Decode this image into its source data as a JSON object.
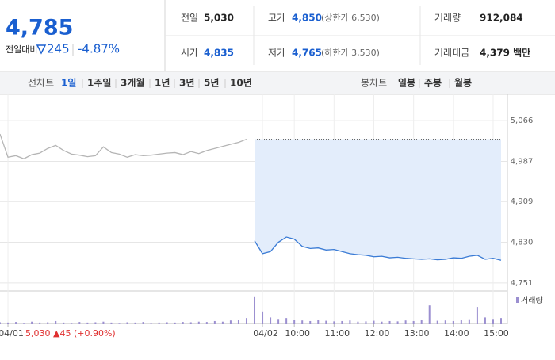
{
  "quote": {
    "price": "4,785",
    "change_label": "전일대비",
    "change": "245",
    "change_pct": "-4.87%"
  },
  "stats": [
    {
      "label": "전일",
      "value": "5,030",
      "color": "#222222"
    },
    {
      "label": "고가",
      "value": "4,850",
      "extra": "(상한가 6,530)",
      "color": "#1a5fd0"
    },
    {
      "label": "거래량",
      "value": "912,084",
      "color": "#222222"
    },
    {
      "label": "시가",
      "value": "4,835",
      "color": "#1a5fd0"
    },
    {
      "label": "저가",
      "value": "4,765",
      "extra": "(하한가 3,530)",
      "color": "#1a5fd0"
    },
    {
      "label": "거래대금",
      "value": "4,379 백만",
      "color": "#222222"
    }
  ],
  "tabs": {
    "line_label": "선차트",
    "line_periods": [
      "1일",
      "1주일",
      "3개월",
      "1년",
      "3년",
      "5년",
      "10년"
    ],
    "selected": 0,
    "candle_label": "봉차트",
    "candle_periods": [
      "일봉",
      "주봉",
      "월봉"
    ]
  },
  "chart_data": [
    {
      "type": "line",
      "categories": [
        null,
        "04/01",
        null,
        null,
        null,
        null,
        null,
        null,
        null,
        null,
        null,
        null,
        null,
        null,
        null,
        null,
        null,
        null,
        null,
        null,
        null,
        null,
        null,
        null,
        null,
        null,
        null,
        null,
        null,
        null,
        null,
        null,
        null,
        "04/02",
        null,
        null,
        null,
        "10:00",
        null,
        null,
        null,
        null,
        "11:00",
        null,
        null,
        null,
        null,
        "12:00",
        null,
        null,
        null,
        null,
        "13:00",
        null,
        null,
        null,
        null,
        "14:00",
        null,
        null,
        null,
        null,
        "15:00",
        null
      ],
      "series": [
        {
          "color": "#b5b5b5",
          "values": [
            5040,
            4995,
            4998,
            4992,
            5000,
            5003,
            5012,
            5018,
            5008,
            5001,
            4999,
            4996,
            4998,
            5015,
            5004,
            5001,
            4995,
            5000,
            4998,
            4999,
            5001,
            5003,
            5004,
            5000,
            5006,
            5002,
            5008,
            5012,
            5016,
            5020,
            5024,
            5030,
            null,
            null,
            null,
            null,
            null,
            null,
            null,
            null,
            null,
            null,
            null,
            null,
            null,
            null,
            null,
            null,
            null,
            null,
            null,
            null,
            null,
            null,
            null,
            null,
            null,
            null,
            null,
            null,
            null,
            null,
            null,
            null
          ]
        },
        {
          "color": "#3a7bd5",
          "fill": "#e3edfb",
          "values": [
            null,
            null,
            null,
            null,
            null,
            null,
            null,
            null,
            null,
            null,
            null,
            null,
            null,
            null,
            null,
            null,
            null,
            null,
            null,
            null,
            null,
            null,
            null,
            null,
            null,
            null,
            null,
            null,
            null,
            null,
            null,
            null,
            4833,
            4808,
            4812,
            4830,
            4840,
            4836,
            4822,
            4818,
            4819,
            4815,
            4816,
            4812,
            4808,
            4806,
            4805,
            4802,
            4803,
            4800,
            4801,
            4799,
            4798,
            4797,
            4798,
            4796,
            4797,
            4800,
            4799,
            4803,
            4805,
            4797,
            4799,
            4795
          ]
        }
      ],
      "reference_line": 5030,
      "annotation": "5,030 ▲45 (+0.90%)",
      "ylim": [
        4737,
        5117
      ],
      "yticks": [
        {
          "value": 5066,
          "label": "5,066"
        },
        {
          "value": 4987,
          "label": "4,987"
        },
        {
          "value": 4909,
          "label": "4,909"
        },
        {
          "value": 4830,
          "label": "4,830"
        },
        {
          "value": 4751,
          "label": "4,751"
        }
      ],
      "grid": true
    },
    {
      "type": "bar",
      "series": [
        {
          "name": "거래량",
          "color": "#9b8fd0",
          "values": [
            4,
            3,
            5,
            2,
            6,
            3,
            4,
            8,
            3,
            2,
            5,
            3,
            4,
            6,
            3,
            2,
            4,
            3,
            5,
            2,
            3,
            4,
            3,
            5,
            4,
            6,
            5,
            8,
            6,
            10,
            12,
            18,
            90,
            40,
            20,
            15,
            18,
            12,
            10,
            8,
            12,
            9,
            7,
            8,
            10,
            6,
            7,
            9,
            6,
            8,
            7,
            10,
            8,
            12,
            60,
            9,
            10,
            8,
            12,
            14,
            55,
            20,
            15,
            18
          ]
        }
      ],
      "ylim": [
        0,
        100
      ],
      "legend": "top-right"
    }
  ]
}
